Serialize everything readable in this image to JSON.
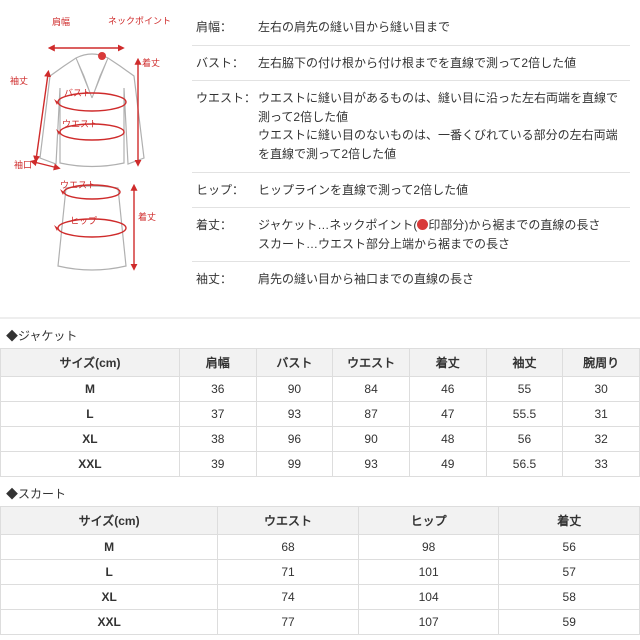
{
  "colors": {
    "arrow": "#cf2b2b",
    "garment_stroke": "#b0b0b0",
    "garment_fill": "#ffffff",
    "border": "#dddddd",
    "header_bg": "#f2f2f2",
    "text": "#333333",
    "dot": "#d83a3a"
  },
  "diagram_labels": {
    "shoulder": "肩幅",
    "neckpoint": "ネックポイント",
    "bust": "バスト",
    "waist": "ウエスト",
    "hip": "ヒップ",
    "length": "着丈",
    "sleeve": "袖丈",
    "cuff": "袖口"
  },
  "definitions": [
    {
      "label": "肩幅：",
      "text": "左右の肩先の縫い目から縫い目まで"
    },
    {
      "label": "バスト：",
      "text": "左右脇下の付け根から付け根までを直線で測って2倍した値"
    },
    {
      "label": "ウエスト：",
      "text": "ウエストに縫い目があるものは、縫い目に沿った左右両端を直線で測って2倍した値\nウエストに縫い目のないものは、一番くびれている部分の左右両端を直線で測って2倍した値"
    },
    {
      "label": "ヒップ：",
      "text": "ヒップラインを直線で測って2倍した値"
    },
    {
      "label": "着丈：",
      "text_html": "ジャケット…ネックポイント(<dot>印部分)から裾までの直線の長さ\nスカート…ウエスト部分上端から裾までの長さ"
    },
    {
      "label": "袖丈：",
      "text": "肩先の縫い目から袖口までの直線の長さ"
    }
  ],
  "jacket_section": {
    "title": "◆ジャケット",
    "columns": [
      "サイズ(cm)",
      "肩幅",
      "バスト",
      "ウエスト",
      "着丈",
      "袖丈",
      "腕周り"
    ],
    "col_widths": [
      "28%",
      "12%",
      "12%",
      "12%",
      "12%",
      "12%",
      "12%"
    ],
    "rows": [
      [
        "M",
        "36",
        "90",
        "84",
        "46",
        "55",
        "30"
      ],
      [
        "L",
        "37",
        "93",
        "87",
        "47",
        "55.5",
        "31"
      ],
      [
        "XL",
        "38",
        "96",
        "90",
        "48",
        "56",
        "32"
      ],
      [
        "XXL",
        "39",
        "99",
        "93",
        "49",
        "56.5",
        "33"
      ]
    ]
  },
  "skirt_section": {
    "title": "◆スカート",
    "columns": [
      "サイズ(cm)",
      "ウエスト",
      "ヒップ",
      "着丈"
    ],
    "col_widths": [
      "34%",
      "22%",
      "22%",
      "22%"
    ],
    "rows": [
      [
        "M",
        "68",
        "98",
        "56"
      ],
      [
        "L",
        "71",
        "101",
        "57"
      ],
      [
        "XL",
        "74",
        "104",
        "58"
      ],
      [
        "XXL",
        "77",
        "107",
        "59"
      ]
    ]
  }
}
